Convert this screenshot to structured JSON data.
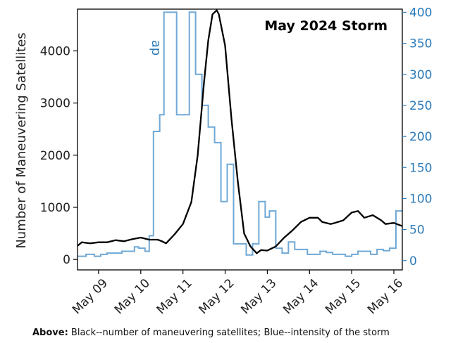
{
  "chart_data": {
    "type": "line",
    "title": "May 2024 Storm",
    "xlabel": "",
    "ylabel": "Number of Maneuvering Satellites",
    "ylabel_right": "",
    "xlim": [
      8.5,
      16.2
    ],
    "ylim": [
      -200,
      4800
    ],
    "ylim_right": [
      -15,
      405
    ],
    "x_ticks": [
      {
        "x": 9,
        "label": "May 09"
      },
      {
        "x": 10,
        "label": "May 10"
      },
      {
        "x": 11,
        "label": "May 11"
      },
      {
        "x": 12,
        "label": "May 12"
      },
      {
        "x": 13,
        "label": "May 13"
      },
      {
        "x": 14,
        "label": "May 14"
      },
      {
        "x": 15,
        "label": "May 15"
      },
      {
        "x": 16,
        "label": "May 16"
      }
    ],
    "y_ticks": [
      0,
      1000,
      2000,
      3000,
      4000
    ],
    "y_ticks_right": [
      0,
      50,
      100,
      150,
      200,
      250,
      300,
      350,
      400
    ],
    "grid": false,
    "colors": {
      "maneuvering": "#000000",
      "ap": "#6fa8d6",
      "right_axis": "#2a7ab9"
    },
    "series": [
      {
        "name": "",
        "axis": "left",
        "style": "line",
        "x": [
          8.5,
          8.6,
          8.8,
          9.0,
          9.2,
          9.4,
          9.6,
          9.8,
          10.0,
          10.2,
          10.4,
          10.5,
          10.6,
          10.8,
          11.0,
          11.2,
          11.35,
          11.5,
          11.6,
          11.7,
          11.8,
          11.85,
          12.0,
          12.15,
          12.3,
          12.45,
          12.6,
          12.75,
          12.85,
          13.0,
          13.2,
          13.4,
          13.6,
          13.8,
          14.0,
          14.2,
          14.3,
          14.5,
          14.6,
          14.8,
          15.0,
          15.15,
          15.3,
          15.5,
          15.7,
          15.8,
          16.0,
          16.2
        ],
        "y": [
          260,
          330,
          310,
          330,
          330,
          370,
          350,
          390,
          420,
          380,
          380,
          350,
          310,
          480,
          680,
          1100,
          2000,
          3400,
          4200,
          4700,
          4780,
          4700,
          4100,
          2700,
          1500,
          500,
          250,
          120,
          180,
          170,
          250,
          420,
          560,
          720,
          800,
          800,
          720,
          680,
          700,
          750,
          900,
          930,
          800,
          850,
          750,
          680,
          700,
          640
        ]
      },
      {
        "name": "ap",
        "axis": "right",
        "style": "step",
        "x": [
          8.5,
          8.7,
          8.9,
          9.05,
          9.2,
          9.4,
          9.55,
          9.7,
          9.85,
          9.95,
          10.1,
          10.2,
          10.3,
          10.45,
          10.55,
          10.72,
          10.85,
          11.0,
          11.15,
          11.3,
          11.45,
          11.6,
          11.75,
          11.9,
          12.05,
          12.2,
          12.35,
          12.5,
          12.65,
          12.8,
          12.95,
          13.05,
          13.2,
          13.35,
          13.5,
          13.65,
          13.8,
          13.95,
          14.1,
          14.25,
          14.4,
          14.55,
          14.7,
          14.85,
          15.0,
          15.15,
          15.3,
          15.45,
          15.6,
          15.75,
          15.9,
          16.05
        ],
        "y": [
          7,
          10,
          7,
          10,
          12,
          12,
          15,
          15,
          22,
          20,
          15,
          40,
          208,
          235,
          400,
          400,
          235,
          235,
          400,
          300,
          250,
          215,
          190,
          95,
          155,
          27,
          27,
          9,
          27,
          95,
          70,
          80,
          20,
          12,
          30,
          18,
          18,
          10,
          10,
          15,
          13,
          10,
          10,
          7,
          10,
          15,
          15,
          10,
          18,
          16,
          20,
          80
        ]
      }
    ]
  },
  "caption": {
    "bold": "Above:",
    "text": " Black--number of maneuvering satellites; Blue--intensity of the storm"
  }
}
